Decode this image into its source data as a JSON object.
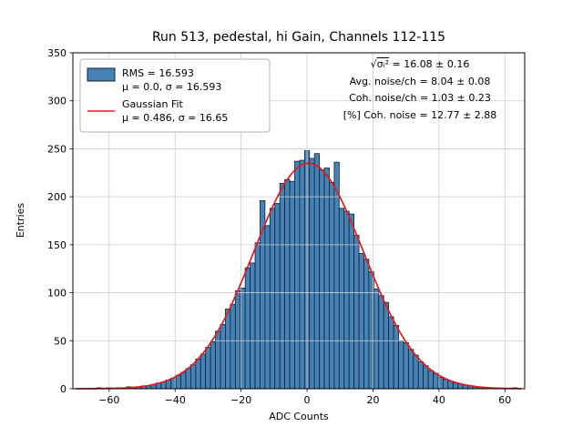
{
  "chart_data": {
    "type": "bar",
    "subtype": "histogram",
    "title": "Run 513, pedestal, hi Gain, Channels 112-115",
    "xlabel": "ADC Counts",
    "ylabel": "Entries",
    "xlim": [
      -71,
      66
    ],
    "ylim": [
      0,
      350
    ],
    "xticks": [
      -60,
      -40,
      -20,
      0,
      20,
      40,
      60
    ],
    "yticks": [
      0,
      50,
      100,
      150,
      200,
      250,
      300,
      350
    ],
    "grid": true,
    "bin_start": -69,
    "bin_width": 1.5,
    "counts": [
      0,
      0,
      0,
      0,
      1,
      0,
      1,
      0,
      1,
      1,
      2,
      1,
      2,
      3,
      3,
      4,
      6,
      7,
      9,
      11,
      14,
      17,
      21,
      25,
      31,
      36,
      43,
      49,
      60,
      67,
      83,
      88,
      102,
      105,
      126,
      131,
      152,
      196,
      170,
      188,
      193,
      214,
      218,
      216,
      237,
      238,
      248,
      240,
      245,
      228,
      230,
      215,
      236,
      188,
      185,
      182,
      160,
      141,
      135,
      122,
      104,
      97,
      90,
      75,
      66,
      50,
      48,
      41,
      35,
      28,
      24,
      19,
      16,
      12,
      10,
      8,
      6,
      5,
      4,
      3,
      2,
      2,
      1,
      1,
      1,
      0,
      0,
      0,
      1
    ],
    "fit": {
      "type": "gaussian",
      "mu": 0.486,
      "sigma": 16.65,
      "amplitude": 235
    }
  },
  "legend": {
    "hist_line1": "RMS = 16.593",
    "hist_line2": "μ = 0.0, σ = 16.593",
    "fit_line1": "Gaussian Fit",
    "fit_line2": "μ = 0.486, σ = 16.65"
  },
  "stats": {
    "line1_prefix": "√",
    "line1_over": "σᵢ²",
    "line1_rest": " = 16.08 ± 0.16",
    "line2": "Avg. noise/ch = 8.04 ± 0.08",
    "line3": "Coh. noise/ch = 1.03 ± 0.23",
    "line4": "[%] Coh. noise = 12.77 ± 2.88"
  },
  "colors": {
    "bar_fill": "#4682b4",
    "bar_edge": "#0d2238",
    "fit_line": "#e31b1b",
    "grid": "#cccccc",
    "frame": "#000000",
    "legend_border": "#b0b0b0"
  }
}
